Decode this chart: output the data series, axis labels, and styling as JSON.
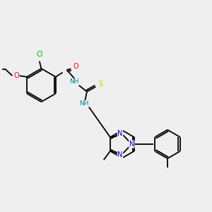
{
  "bg_color": "#efefef",
  "bond_color": "#000000",
  "atom_colors": {
    "Cl": "#00aa00",
    "O": "#ff0000",
    "N": "#0000ee",
    "S": "#cccc00",
    "NH": "#008888"
  },
  "lw": 1.3,
  "r_hex": 0.72,
  "r_small": 0.6
}
